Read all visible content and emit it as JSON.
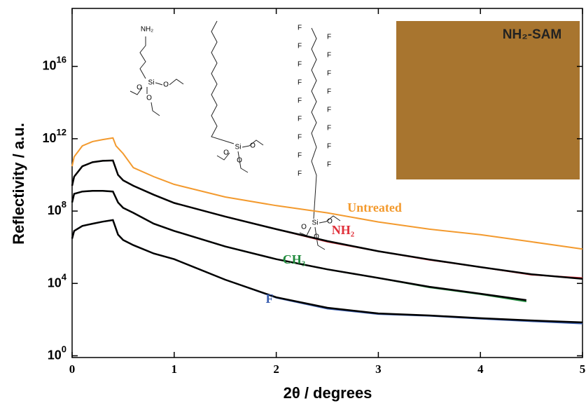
{
  "chart_data": {
    "type": "line",
    "xlabel": "2θ / degrees",
    "ylabel": "Reflectivity / a.u.",
    "xlim": [
      0,
      5
    ],
    "xticks": [
      0,
      1,
      2,
      3,
      4,
      5
    ],
    "ylim": [
      0.8,
      1.6e+19
    ],
    "log_y": true,
    "yticks": [
      {
        "value": 1,
        "label": "10^0"
      },
      {
        "value": 10000.0,
        "label": "10^4"
      },
      {
        "value": 100000000.0,
        "label": "10^8"
      },
      {
        "value": 1000000000000.0,
        "label": "10^12"
      },
      {
        "value": 1e+16,
        "label": "10^16"
      }
    ],
    "series": [
      {
        "name": "Untreated",
        "color": "#f39a2e",
        "x": [
          0,
          0.02,
          0.1,
          0.2,
          0.3,
          0.4,
          0.43,
          0.5,
          0.6,
          0.8,
          1,
          1.5,
          2,
          2.5,
          3,
          3.5,
          4,
          4.5,
          5
        ],
        "values": [
          30000000000.0,
          100000000000.0,
          400000000000.0,
          700000000000.0,
          900000000000.0,
          1100000000000.0,
          400000000000.0,
          150000000000.0,
          25000000000.0,
          8000000000.0,
          3000000000.0,
          600000000.0,
          200000000.0,
          80000000.0,
          25000000.0,
          10000000.0,
          5000000.0,
          2000000.0,
          800000.0
        ]
      },
      {
        "name": "NH₂",
        "color": "#e0303a",
        "x": [
          0,
          0.02,
          0.1,
          0.2,
          0.3,
          0.4,
          0.45,
          0.5,
          0.6,
          0.8,
          1,
          1.5,
          2,
          2.5,
          3,
          3.5,
          4,
          4.5,
          5
        ],
        "values": [
          2500000000.0,
          8000000000.0,
          30000000000.0,
          50000000000.0,
          60000000000.0,
          63000000000.0,
          10000000000.0,
          5000000000.0,
          2500000000.0,
          800000000.0,
          280000000.0,
          50000000.0,
          10000000.0,
          2000000.0,
          600000.0,
          200000.0,
          80000.0,
          30000.0,
          20000.0
        ]
      },
      {
        "name": "CH₃",
        "color": "#1f8a3c",
        "x": [
          0,
          0.02,
          0.1,
          0.2,
          0.3,
          0.4,
          0.45,
          0.5,
          0.6,
          0.8,
          1,
          1.5,
          2,
          2.5,
          3,
          3.5,
          4,
          4.45
        ],
        "values": [
          300000000.0,
          900000000.0,
          1200000000.0,
          1300000000.0,
          1300000000.0,
          1200000000.0,
          300000000.0,
          150000000.0,
          80000000.0,
          20000000.0,
          8000000.0,
          1100000.0,
          220000.0,
          60000.0,
          20000.0,
          6000.0,
          2500.0,
          1000.0
        ]
      },
      {
        "name": "F",
        "color": "#3a5fb0",
        "x": [
          0,
          0.02,
          0.1,
          0.2,
          0.3,
          0.4,
          0.45,
          0.5,
          0.6,
          0.8,
          1,
          1.5,
          2,
          2.5,
          3,
          3.5,
          4,
          4.5,
          5
        ],
        "values": [
          3000000.0,
          8000000.0,
          15000000.0,
          20000000.0,
          26000000.0,
          32000000.0,
          5000000.0,
          2500000.0,
          1300000.0,
          450000.0,
          220000.0,
          16000.0,
          1600.0,
          400.0,
          200.0,
          160.0,
          110.0,
          80,
          60
        ]
      },
      {
        "color": "#000000",
        "x": [
          0,
          0.02,
          0.1,
          0.2,
          0.3,
          0.4,
          0.45,
          0.5,
          0.6,
          0.8,
          1,
          1.5,
          2,
          2.5,
          3,
          3.5,
          4,
          4.5,
          5
        ],
        "values": [
          2500000000.0,
          8000000000.0,
          30000000000.0,
          50000000000.0,
          60000000000.0,
          63000000000.0,
          10000000000.0,
          5000000000.0,
          2500000000.0,
          800000000.0,
          280000000.0,
          50000000.0,
          10000000.0,
          2200000.0,
          600000.0,
          210000.0,
          80000.0,
          32000.0,
          18000.0
        ]
      },
      {
        "color": "#000000",
        "x": [
          0,
          0.02,
          0.1,
          0.2,
          0.3,
          0.4,
          0.45,
          0.5,
          0.6,
          0.8,
          1,
          1.5,
          2,
          2.5,
          3,
          3.5,
          4,
          4.45
        ],
        "values": [
          300000000.0,
          900000000.0,
          1200000000.0,
          1300000000.0,
          1300000000.0,
          1200000000.0,
          300000000.0,
          150000000.0,
          80000000.0,
          20000000.0,
          8000000.0,
          1100000.0,
          220000.0,
          60000.0,
          20000.0,
          6500.0,
          2700.0,
          1200.0
        ]
      },
      {
        "color": "#000000",
        "x": [
          0,
          0.02,
          0.1,
          0.2,
          0.3,
          0.4,
          0.45,
          0.5,
          0.6,
          0.8,
          1,
          1.5,
          2,
          2.5,
          3,
          3.5,
          4,
          4.5,
          5
        ],
        "values": [
          3000000.0,
          8000000.0,
          15000000.0,
          20000000.0,
          26000000.0,
          32000000.0,
          5000000.0,
          2500000.0,
          1300000.0,
          450000.0,
          220000.0,
          16000.0,
          1700.0,
          450.0,
          220.0,
          170.0,
          120.0,
          90,
          70
        ]
      }
    ],
    "inset_label": "NH₂-SAM",
    "molecules": [
      {
        "atoms": [
          "NH₂",
          "Si",
          "O",
          "O",
          "O"
        ]
      },
      {
        "atoms": [
          "Si",
          "O",
          "O",
          "O"
        ]
      },
      {
        "atoms": [
          "F",
          "F",
          "F",
          "F",
          "F",
          "F",
          "F",
          "F",
          "F",
          "F",
          "F",
          "F",
          "F",
          "F",
          "F",
          "F",
          "F",
          "Si",
          "O",
          "O",
          "O"
        ]
      }
    ]
  }
}
